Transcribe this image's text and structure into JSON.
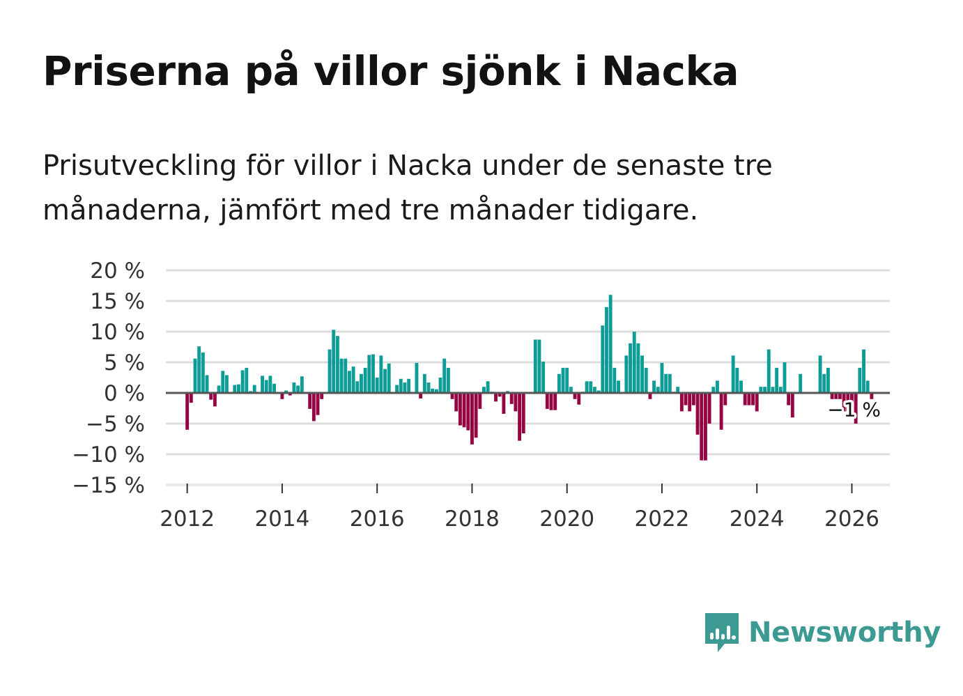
{
  "header": {
    "title": "Priserna på villor sjönk i Nacka",
    "subtitle": "Prisutveckling för villor i Nacka under de senaste tre månaderna, jämfört med tre månader tidigare."
  },
  "brand": {
    "name": "Newsworthy",
    "color": "#3d9a93",
    "icon": "bar-chart-speech-bubble-icon"
  },
  "colors": {
    "positive": "#0e9c96",
    "negative": "#950541",
    "zero_line": "#555555",
    "grid": "#dddddd"
  },
  "chart_data": {
    "type": "bar",
    "title": "Priserna på villor sjönk i Nacka",
    "xlabel": "",
    "ylabel": "",
    "unit": "%",
    "ylim": [
      -15,
      20
    ],
    "yticks": [
      20,
      15,
      10,
      5,
      0,
      -5,
      -10,
      -15
    ],
    "ytick_labels": [
      "20 %",
      "15 %",
      "10 %",
      "5 %",
      "0 %",
      "−5 %",
      "−10 %",
      "−15 %"
    ],
    "xlim": [
      2011.55,
      2026.8
    ],
    "xticks": [
      2012,
      2014,
      2016,
      2018,
      2020,
      2022,
      2024,
      2026
    ],
    "xtick_labels": [
      "2012",
      "2014",
      "2016",
      "2018",
      "2020",
      "2022",
      "2024",
      "2026"
    ],
    "start": {
      "year": 2012,
      "month": 1
    },
    "frequency": "monthly",
    "values": [
      -6,
      -1.6,
      5.6,
      7.6,
      6.6,
      2.9,
      -1.1,
      -2.2,
      1.2,
      3.6,
      2.9,
      0,
      1.3,
      1.4,
      3.7,
      4.1,
      0.3,
      1.3,
      0,
      2.8,
      2.1,
      2.8,
      1.5,
      0,
      -1,
      0.4,
      -0.4,
      1.7,
      1.2,
      2.7,
      0,
      -2.6,
      -4.6,
      -3.6,
      -1,
      0,
      7.1,
      10.3,
      9.3,
      5.6,
      5.6,
      3.6,
      4.3,
      1.9,
      3.1,
      4.1,
      6.2,
      6.3,
      2.5,
      6.1,
      3.9,
      4.8,
      0,
      1.3,
      2.3,
      1.7,
      2.3,
      0,
      4.9,
      -0.9,
      3.1,
      1.7,
      0.7,
      0.6,
      2.5,
      5.6,
      4.1,
      -1,
      -3,
      -5.3,
      -5.6,
      -6.1,
      -8.4,
      -7.3,
      -2.6,
      1,
      1.9,
      0.2,
      -1.4,
      -0.6,
      -3.4,
      0.3,
      -1.8,
      -3,
      -7.8,
      -6.6,
      0,
      0,
      8.7,
      8.7,
      5.1,
      -2.6,
      -2.8,
      -2.8,
      3.1,
      4.1,
      4.1,
      1,
      -1,
      -1.9,
      0.2,
      1.9,
      1.9,
      1,
      0.4,
      11,
      14,
      16,
      4.1,
      2,
      0,
      6.1,
      8.1,
      10,
      8.1,
      6.1,
      4.1,
      -1,
      2,
      1,
      4.9,
      3.1,
      3.1,
      0.2,
      1,
      -3,
      -2,
      -3,
      -2,
      -6.8,
      -11,
      -11,
      -5,
      1,
      2,
      -6,
      -2,
      0,
      6.1,
      4.1,
      2,
      -2,
      -2,
      -2,
      -3,
      1,
      1,
      7.1,
      1,
      4.1,
      1,
      5,
      -2,
      -4,
      0,
      3.1,
      0,
      0,
      0,
      0,
      6.1,
      3.1,
      4.1,
      -1,
      -1,
      -1,
      -3,
      -3,
      -3,
      -5,
      4.1,
      7.1,
      2,
      -1
    ],
    "last_value_label": "−1 %"
  }
}
